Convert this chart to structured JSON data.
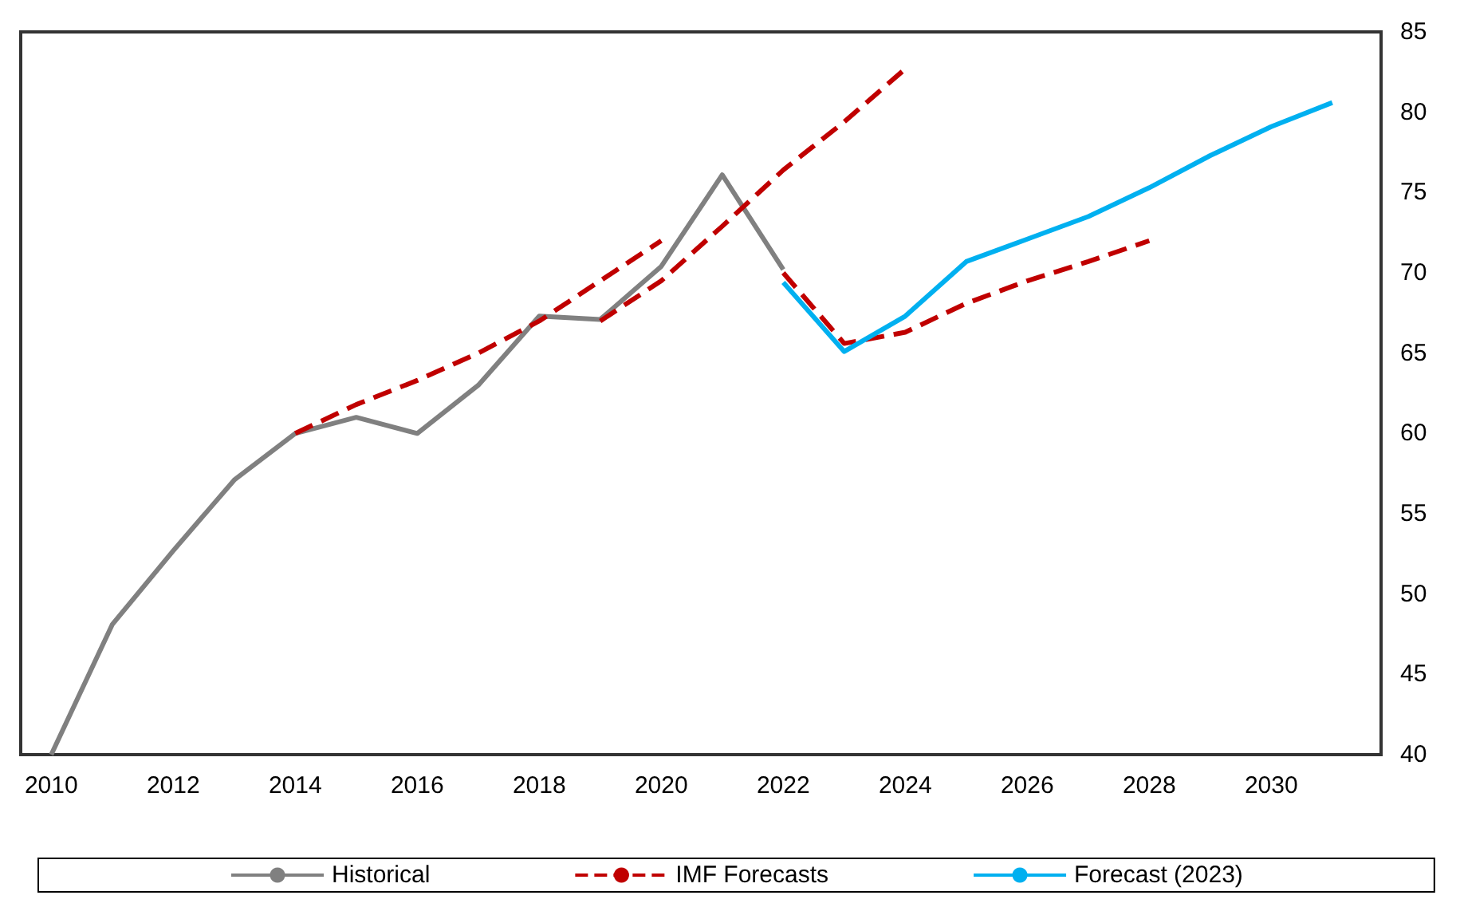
{
  "chart_data": {
    "type": "line",
    "x": [
      2010,
      2011,
      2012,
      2013,
      2014,
      2015,
      2016,
      2017,
      2018,
      2019,
      2020,
      2021,
      2022
    ],
    "xlim": [
      2009.5,
      2031.8
    ],
    "xticks": [
      2010,
      2012,
      2014,
      2016,
      2018,
      2020,
      2022,
      2024,
      2026,
      2028,
      2030
    ],
    "ylim": [
      40,
      85
    ],
    "yticks": [
      40,
      45,
      50,
      55,
      60,
      65,
      70,
      75,
      80,
      85
    ],
    "grid": false,
    "legend": "bottom",
    "marker": "none",
    "series": [
      {
        "name": "Historical",
        "color": "#808080",
        "line_style": "solid",
        "values": [
          40,
          48.1,
          52.7,
          57.1,
          60,
          61,
          60,
          63,
          67.3,
          67.1,
          70.4,
          76.1,
          70.2
        ]
      },
      {
        "name": "IMF Forecasts",
        "color": "#c00000",
        "line_style": "dashed",
        "x": [
          2014,
          2015,
          2016,
          2017,
          2018,
          2019,
          2020
        ],
        "values": [
          60,
          61.8,
          63.3,
          65,
          67,
          69.5,
          72
        ]
      },
      {
        "color": "#c00000",
        "line_style": "dashed",
        "x": [
          2019,
          2020,
          2021,
          2022,
          2023,
          2024
        ],
        "values": [
          67,
          69.5,
          72.9,
          76.4,
          79.4,
          82.7
        ]
      },
      {
        "color": "#c00000",
        "line_style": "dashed",
        "x": [
          2022,
          2023,
          2024,
          2025,
          2026,
          2027,
          2028
        ],
        "values": [
          70,
          65.6,
          66.3,
          68.1,
          69.5,
          70.7,
          72
        ]
      },
      {
        "name": "Forecast (2023)",
        "color": "#00b0f0",
        "line_style": "solid",
        "x": [
          2022,
          2023,
          2024,
          2025,
          2026,
          2027,
          2028,
          2029,
          2030,
          2031
        ],
        "values": [
          69.4,
          65.1,
          67.3,
          70.7,
          72.1,
          73.5,
          75.3,
          77.3,
          79.1,
          80.6
        ]
      }
    ]
  }
}
